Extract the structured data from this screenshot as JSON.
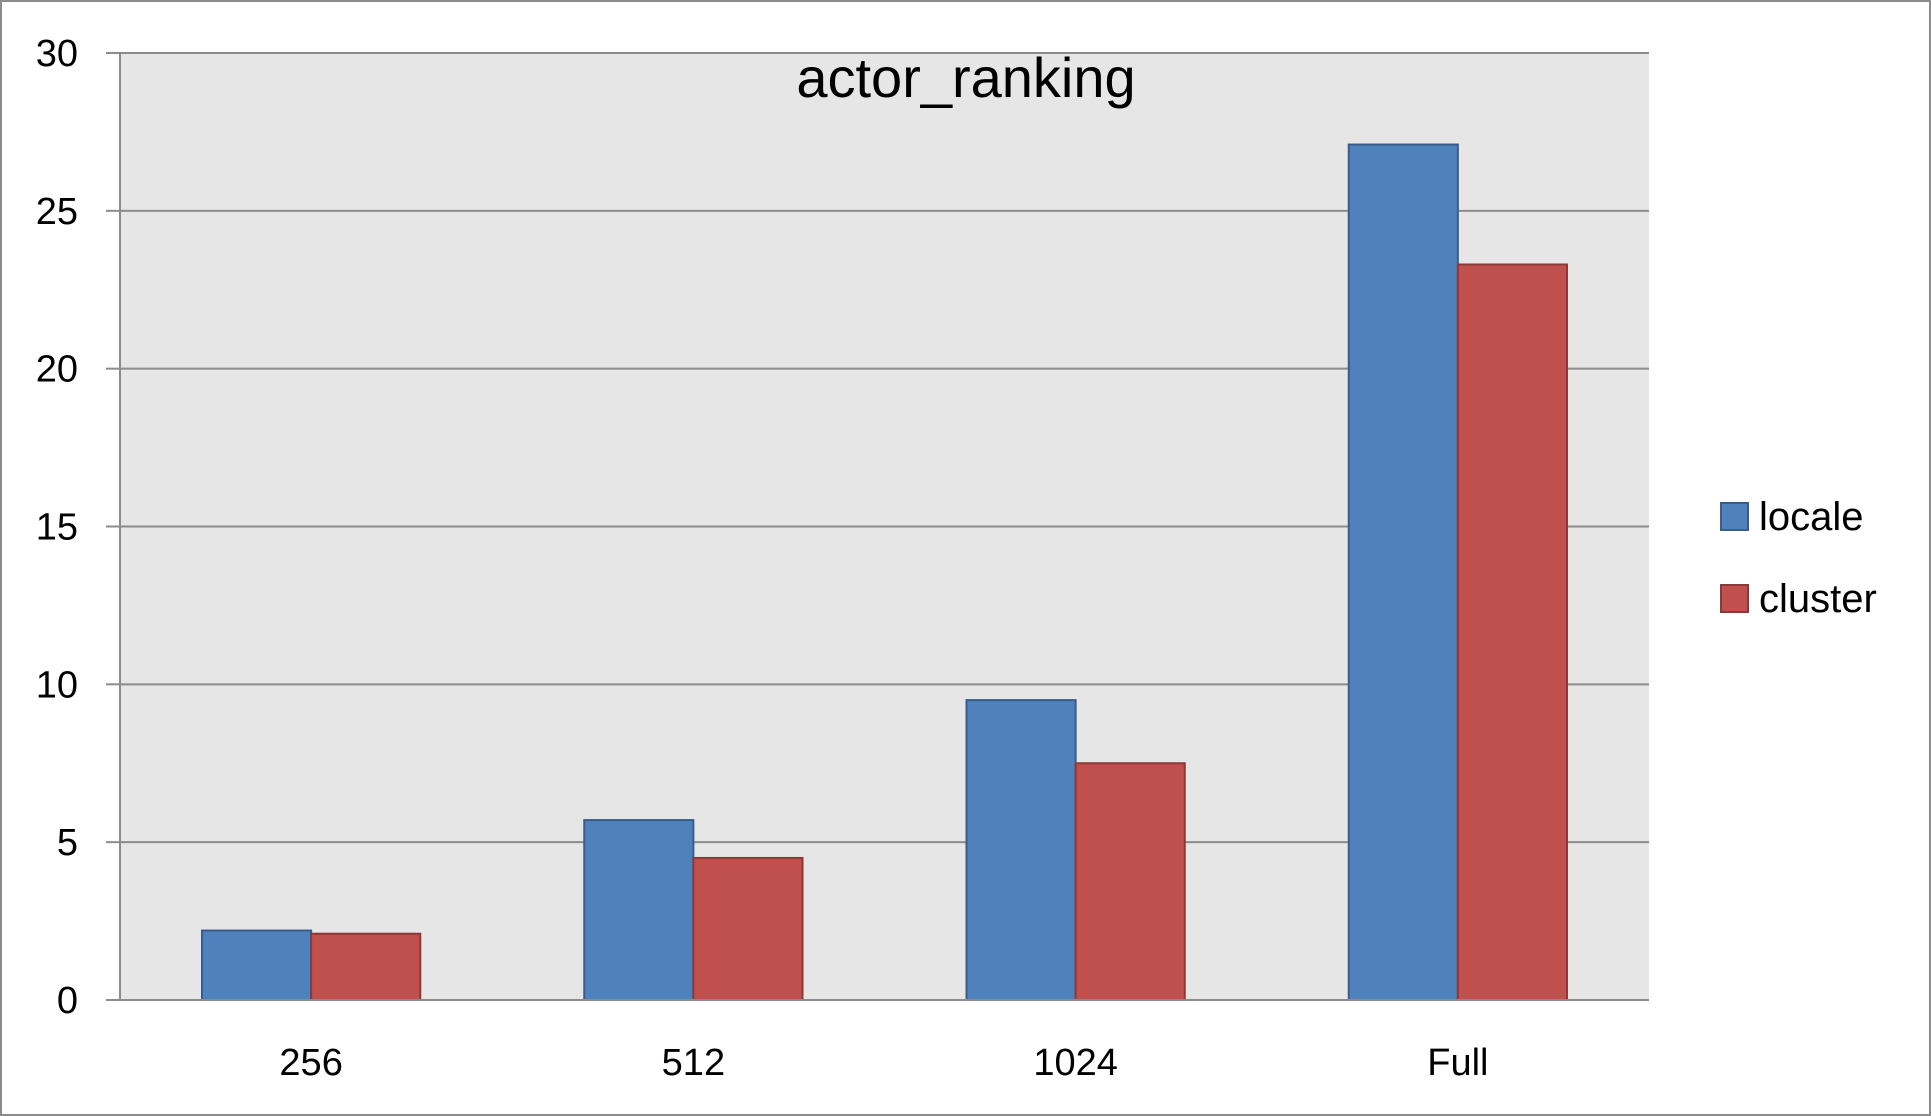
{
  "chart_data": {
    "type": "bar",
    "title": "actor_ranking",
    "xlabel": "",
    "ylabel": "",
    "categories": [
      "256",
      "512",
      "1024",
      "Full"
    ],
    "series": [
      {
        "name": "locale",
        "values": [
          2.2,
          5.7,
          9.5,
          27.1
        ],
        "color": "#4f81bd",
        "stroke": "#385d8a"
      },
      {
        "name": "cluster",
        "values": [
          2.1,
          4.5,
          7.5,
          23.3
        ],
        "color": "#c0504d",
        "stroke": "#8c3836"
      }
    ],
    "ylim": [
      0,
      30
    ],
    "yticks": [
      "0",
      "5",
      "10",
      "15",
      "20",
      "25",
      "30"
    ],
    "grid": true,
    "legend_position": "right",
    "plot_background": "#e6e6e6",
    "gridline_color": "#8c8c8c"
  }
}
